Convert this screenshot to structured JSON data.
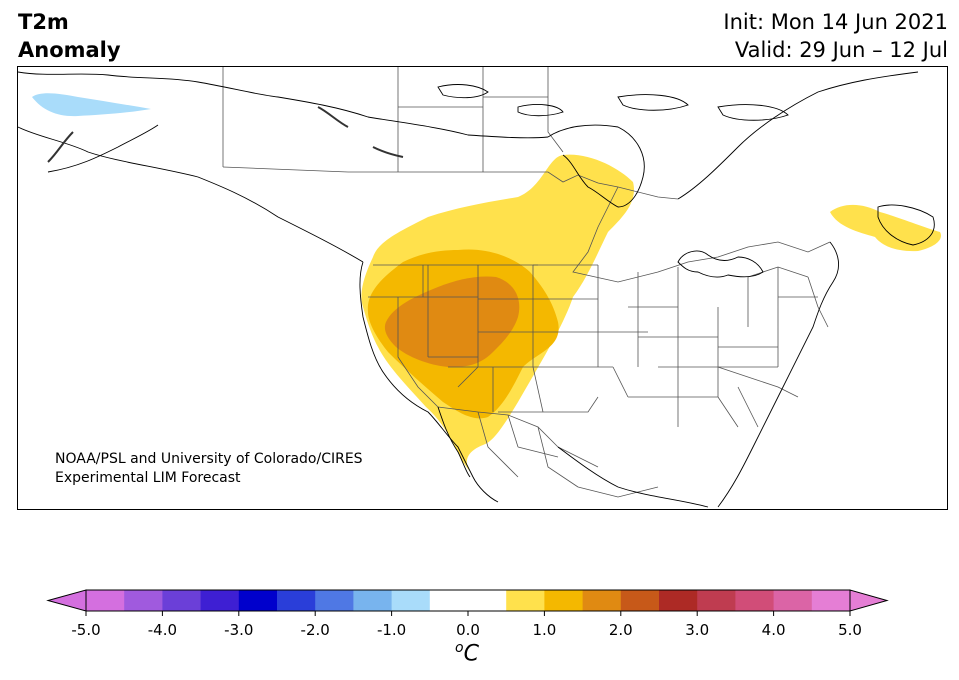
{
  "title": {
    "line1": "T2m",
    "line2": "Anomaly"
  },
  "init": {
    "line1": "Init: Mon 14 Jun 2021",
    "line2": "Valid: 29 Jun – 12 Jul"
  },
  "credit": {
    "line1": "NOAA/PSL and University of Colorado/CIRES",
    "line2": "Experimental LIM Forecast"
  },
  "colorbar": {
    "units_base": "C",
    "units_sup": "o",
    "ticks": [
      "-5.0",
      "-4.0",
      "-3.0",
      "-2.0",
      "-1.0",
      "0.0",
      "1.0",
      "2.0",
      "3.0",
      "4.0",
      "5.0"
    ],
    "colors": [
      "#d46fdf",
      "#a05ade",
      "#6b3fd8",
      "#3e1fd3",
      "#0000cc",
      "#2a3ed9",
      "#4f78e4",
      "#78b4ee",
      "#a9dcfa",
      "#ffffff",
      "#ffffff",
      "#ffe14c",
      "#f4b800",
      "#e08a12",
      "#c75919",
      "#ad2a25",
      "#bf3c50",
      "#d14d78",
      "#db64a6",
      "#e57ed5"
    ],
    "under_color": "#d46fdf",
    "over_color": "#e57ed5"
  },
  "colors": {
    "anom_0_5": "#ffe14c",
    "anom_1_0": "#f4b800",
    "anom_1_5": "#e08a12",
    "anom_neg_0_5": "#a9dcfa"
  }
}
